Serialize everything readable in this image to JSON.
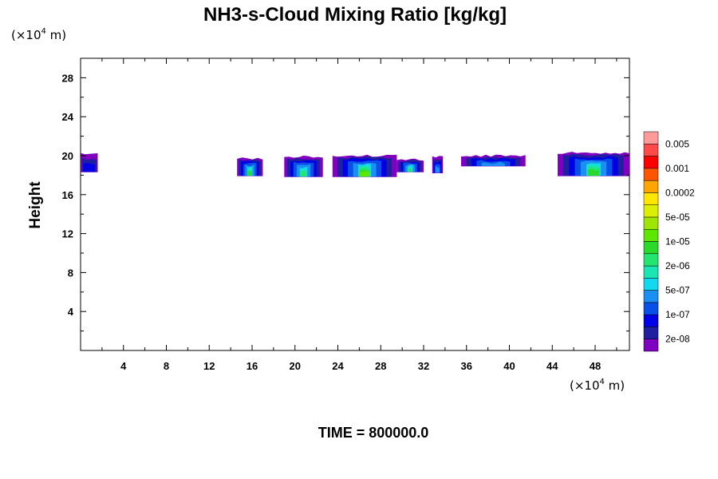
{
  "chart_data": {
    "type": "heatmap",
    "title": "NH3-s-Cloud Mixing Ratio [kg/kg]",
    "ylabel": "Height",
    "y_unit": {
      "prefix": "(×10",
      "exp": "4",
      "suffix": " m)"
    },
    "x_unit": {
      "prefix": "(×10",
      "exp": "4",
      "suffix": " m)"
    },
    "xlim": [
      0,
      51.2
    ],
    "ylim": [
      0,
      30
    ],
    "x_ticks": [
      4,
      8,
      12,
      16,
      20,
      24,
      28,
      32,
      36,
      40,
      44,
      48
    ],
    "y_ticks": [
      4,
      8,
      12,
      16,
      20,
      24,
      28
    ],
    "time_label": "TIME = 800000.0",
    "colorbar": {
      "colors": [
        "#7f00bf",
        "#1f1fa0",
        "#0000e6",
        "#0a4fe8",
        "#1b8ff2",
        "#12d9f0",
        "#1ae6b4",
        "#23e66e",
        "#2bd92b",
        "#5ce600",
        "#9ee600",
        "#dcef00",
        "#ffe600",
        "#ffa500",
        "#ff5500",
        "#ff0000",
        "#ff4a4a",
        "#ff9a9a"
      ],
      "labels": [
        "2e-08",
        "1e-07",
        "5e-07",
        "2e-06",
        "1e-05",
        "5e-05",
        "0.0002",
        "0.001",
        "0.005"
      ]
    },
    "cloud_patches": [
      {
        "x0": 0.0,
        "x1": 1.6,
        "base": 18.3,
        "top": 20.2,
        "peak": 2
      },
      {
        "x0": 14.6,
        "x1": 17.0,
        "base": 17.9,
        "top": 19.7,
        "peak": 8
      },
      {
        "x0": 19.0,
        "x1": 22.6,
        "base": 17.8,
        "top": 19.9,
        "peak": 7
      },
      {
        "x0": 23.5,
        "x1": 29.5,
        "base": 17.8,
        "top": 20.0,
        "peak": 9
      },
      {
        "x0": 29.5,
        "x1": 32.0,
        "base": 18.3,
        "top": 19.6,
        "peak": 7
      },
      {
        "x0": 32.8,
        "x1": 33.8,
        "base": 18.2,
        "top": 19.9,
        "peak": 4
      },
      {
        "x0": 35.5,
        "x1": 41.5,
        "base": 18.9,
        "top": 20.0,
        "peak": 4
      },
      {
        "x0": 44.5,
        "x1": 51.2,
        "base": 17.9,
        "top": 20.3,
        "peak": 8
      }
    ]
  }
}
